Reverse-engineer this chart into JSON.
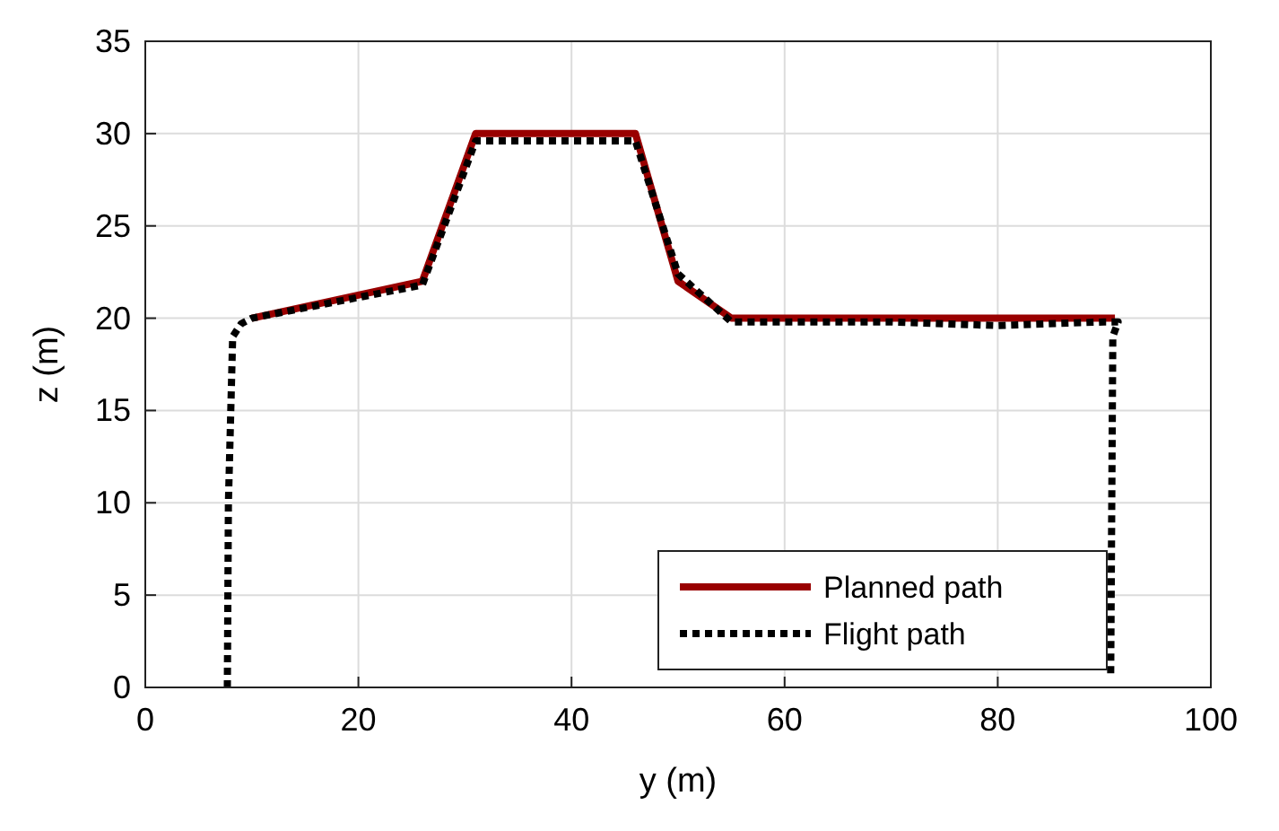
{
  "chart_data": {
    "type": "line",
    "xlabel": "y (m)",
    "ylabel": "z (m)",
    "xlim": [
      0,
      100
    ],
    "ylim": [
      0,
      35
    ],
    "xticks": [
      0,
      20,
      40,
      60,
      80,
      100
    ],
    "yticks": [
      0,
      5,
      10,
      15,
      20,
      25,
      30,
      35
    ],
    "grid": true,
    "legend": "bottom right",
    "series": [
      {
        "name": "Planned path",
        "color": "#990000",
        "line_style": "solid",
        "x": [
          10,
          26,
          31,
          46,
          50,
          55,
          91
        ],
        "values": [
          20,
          22,
          30,
          30,
          22,
          20,
          20
        ]
      },
      {
        "name": "Flight path",
        "color": "#000000",
        "line_style": "dotted",
        "x": [
          7.7,
          7.8,
          8.2,
          9,
          10,
          26,
          31,
          46,
          50,
          55,
          70,
          80,
          90,
          91.3,
          90.8,
          90.6
        ],
        "values": [
          0,
          10,
          19,
          19.7,
          20,
          21.8,
          29.6,
          29.6,
          22.4,
          19.8,
          19.8,
          19.6,
          19.8,
          19.8,
          19,
          0.5
        ]
      }
    ]
  }
}
